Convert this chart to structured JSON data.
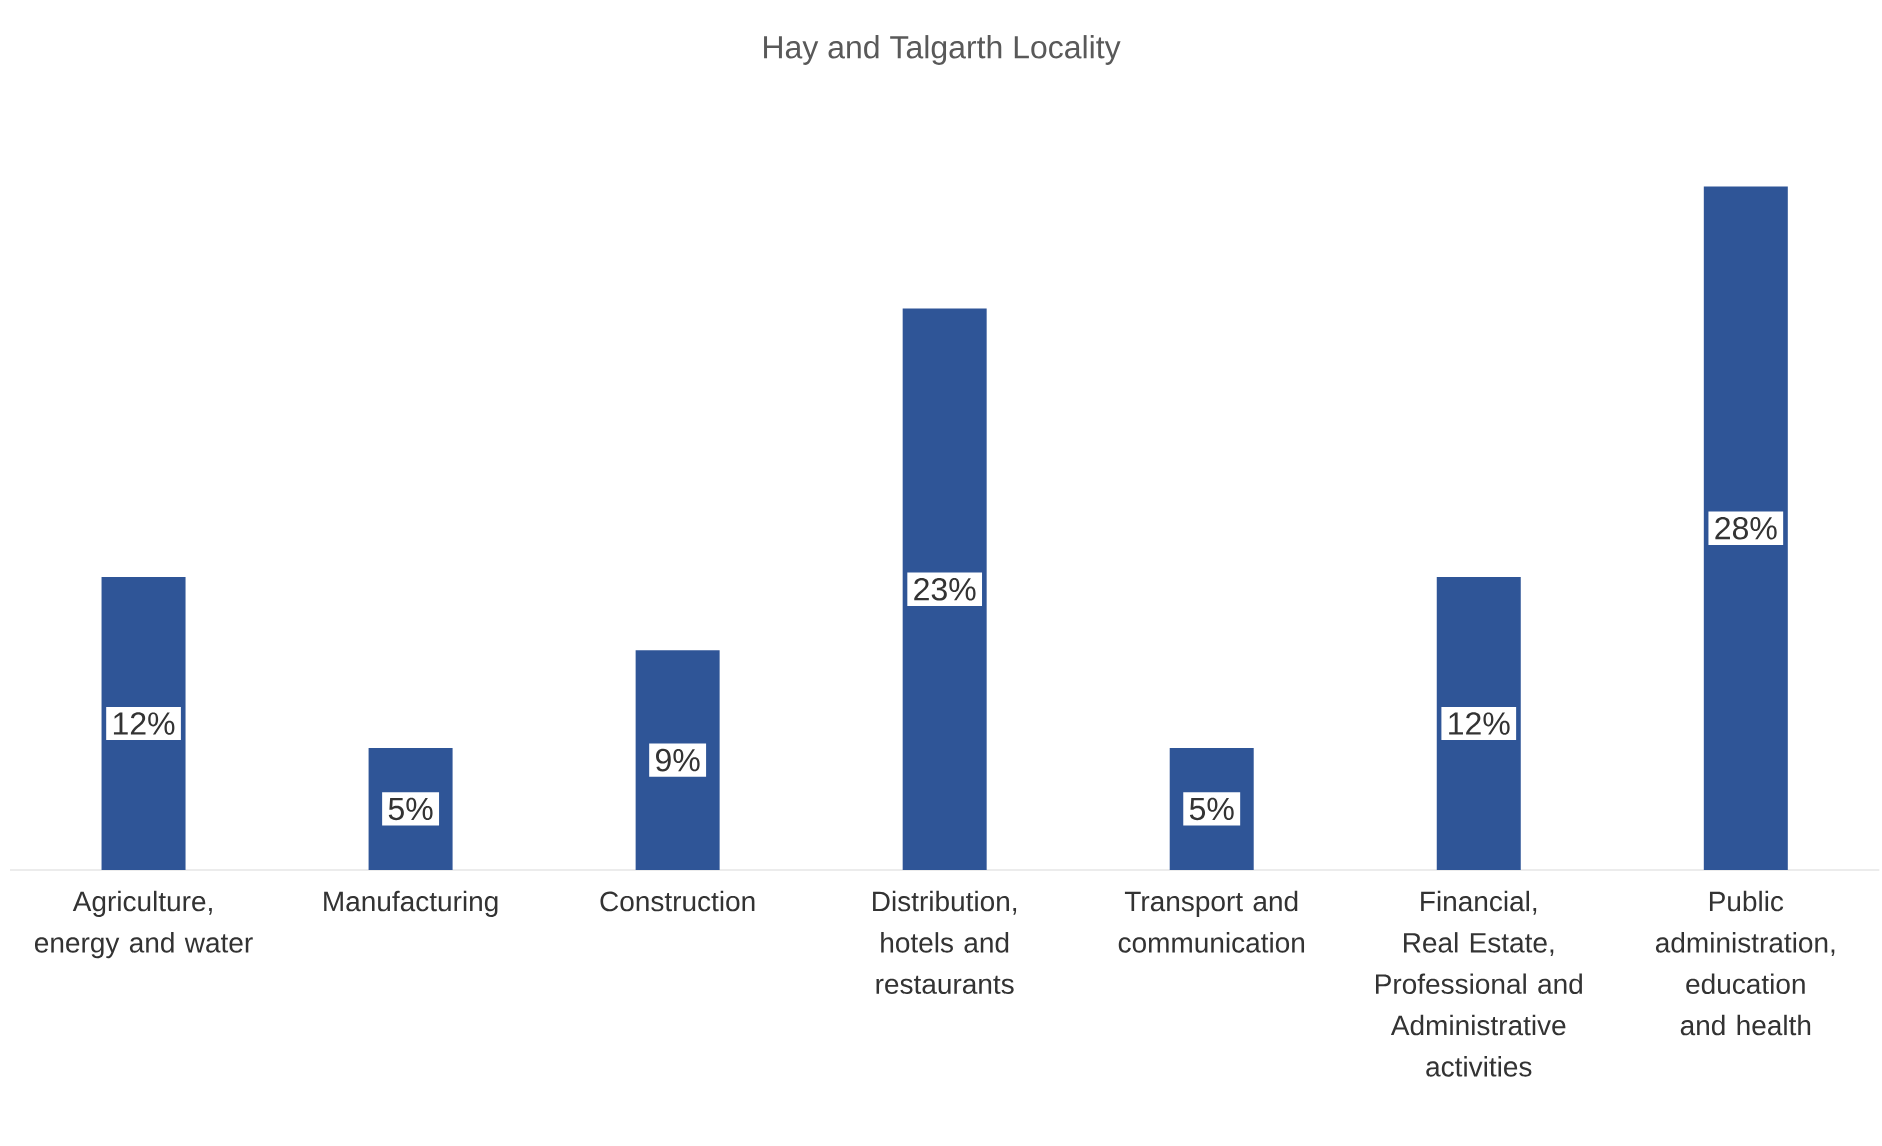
{
  "chart_data": {
    "type": "bar",
    "title": "Hay and Talgarth Locality",
    "categories": [
      "Agriculture, energy and water",
      "Manufacturing",
      "Construction",
      "Distribution, hotels and restaurants",
      "Transport and communication",
      "Financial, Real Estate, Professional and Administrative activities",
      "Public administration, education and health"
    ],
    "values": [
      12,
      5,
      9,
      23,
      5,
      12,
      28
    ],
    "value_labels": [
      "12%",
      "5%",
      "9%",
      "23%",
      "5%",
      "12%",
      "28%"
    ],
    "color": "#2f5597"
  }
}
